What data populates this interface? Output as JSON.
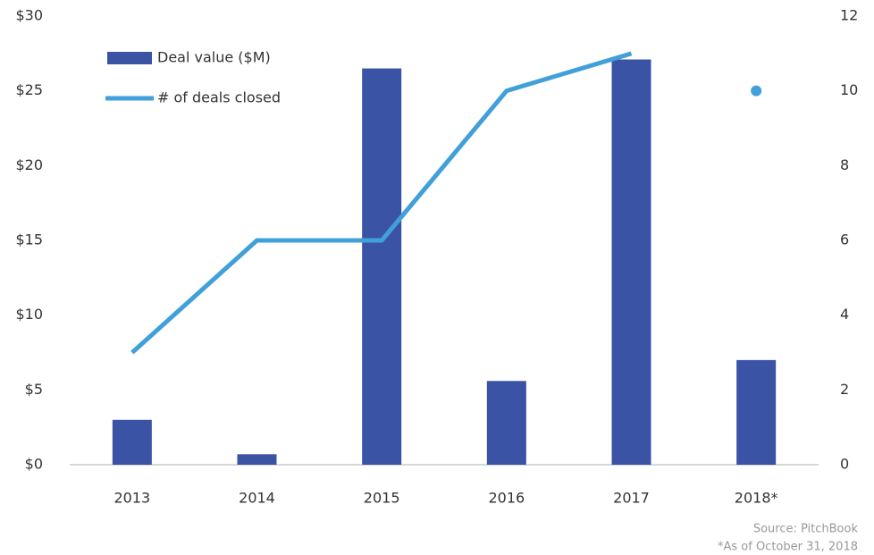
{
  "chart_data": {
    "type": "bar-line",
    "categories": [
      "2013",
      "2014",
      "2015",
      "2016",
      "2017",
      "2018*"
    ],
    "series": [
      {
        "name": "Deal value ($M)",
        "type": "bar",
        "color": "#3a53a4",
        "values": [
          3.0,
          0.7,
          26.5,
          5.6,
          27.1,
          7.0
        ]
      },
      {
        "name": "# of deals closed",
        "type": "line",
        "axis": "y2",
        "color": "#41a0d9",
        "values": [
          3,
          6,
          6,
          10,
          11,
          10
        ],
        "standalone_points": [
          5
        ]
      }
    ],
    "ylim": [
      0,
      30
    ],
    "yticks": [
      {
        "value": 0,
        "label": "$0"
      },
      {
        "value": 5,
        "label": "$5"
      },
      {
        "value": 10,
        "label": "$10"
      },
      {
        "value": 15,
        "label": "$15"
      },
      {
        "value": 20,
        "label": "$20"
      },
      {
        "value": 25,
        "label": "$25"
      },
      {
        "value": 30,
        "label": "$30"
      }
    ],
    "y2lim": [
      0,
      12
    ],
    "y2ticks": [
      0,
      2,
      4,
      6,
      8,
      10,
      12
    ],
    "legend": "top-left",
    "source": "Source: PitchBook",
    "note": "*As of October 31, 2018"
  }
}
